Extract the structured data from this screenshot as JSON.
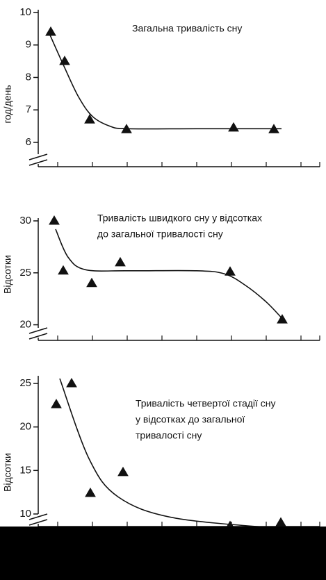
{
  "chart_data": [
    {
      "type": "scatter",
      "title": [
        "Загальна тривалість сну"
      ],
      "ylabel": "год/день",
      "color": "#111111",
      "xlim": [
        0.44,
        8.54
      ],
      "ylim": [
        5.25,
        10
      ],
      "yticks": [
        6,
        7,
        8,
        9,
        10
      ],
      "points": {
        "x": [
          0.8,
          1.2,
          1.92,
          2.98,
          6.06,
          7.22
        ],
        "y": [
          9.4,
          8.5,
          6.7,
          6.4,
          6.45,
          6.4
        ]
      },
      "curve": {
        "x": [
          0.74,
          1.2,
          1.6,
          2,
          2.5,
          3,
          5,
          7.44
        ],
        "y": [
          9.4,
          8.3,
          7.4,
          6.8,
          6.5,
          6.42,
          6.42,
          6.42
        ]
      }
    },
    {
      "type": "scatter",
      "title": [
        "Тривалість швидкого сну  у відсотках",
        "до загальної тривалості сну"
      ],
      "ylabel": "Відсотки",
      "color": "#111111",
      "xlim": [
        0.44,
        8.54
      ],
      "ylim": [
        18.5,
        30
      ],
      "yticks": [
        20,
        25,
        30
      ],
      "points": {
        "x": [
          0.9,
          1.16,
          1.98,
          2.8,
          5.96,
          7.46
        ],
        "y": [
          30.0,
          25.2,
          24.0,
          26.0,
          25.1,
          20.5
        ]
      },
      "curve": {
        "x": [
          0.94,
          1.3,
          1.8,
          3,
          5,
          5.8,
          6.4,
          7,
          7.46
        ],
        "y": [
          29.2,
          26.5,
          25.3,
          25.2,
          25.2,
          24.9,
          23.8,
          22.2,
          20.6
        ]
      }
    },
    {
      "type": "scatter",
      "title": [
        "Тривалість четвертої стадії сну",
        "у відсотках до загальної",
        "тривалості сну"
      ],
      "ylabel": "Відсотки",
      "color": "#111111",
      "xlim": [
        0.44,
        8.54
      ],
      "ylim": [
        8.56,
        25.56
      ],
      "yticks": [
        10,
        15,
        20,
        25
      ],
      "points": {
        "x": [
          0.96,
          1.4,
          1.94,
          2.88,
          5.96,
          7.42
        ],
        "y": [
          22.6,
          25.0,
          12.4,
          14.8,
          8.6,
          9.0
        ]
      },
      "curve": {
        "x": [
          1.06,
          1.9,
          2.74,
          4.34,
          7.34
        ],
        "y": [
          25.56,
          16.36,
          11.96,
          9.56,
          8.36
        ]
      }
    }
  ]
}
